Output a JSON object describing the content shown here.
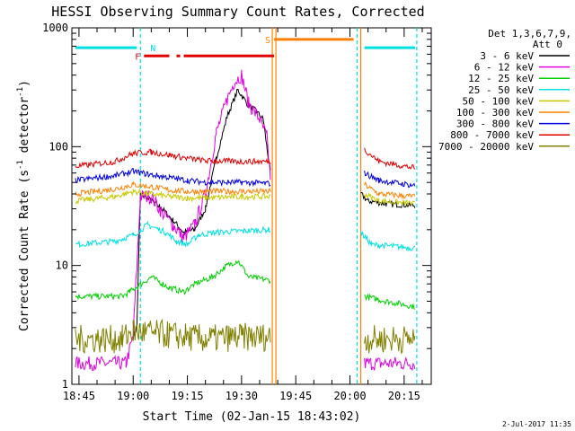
{
  "chart_data": {
    "type": "line",
    "title": "HESSI Observing Summary Count Rates, Corrected",
    "xlabel": "Start Time (02-Jan-15 18:43:02)",
    "ylabel": "Corrected Count Rate (s",
    "ylabel_sup1": "-1",
    "ylabel_mid": " detector",
    "ylabel_sup2": "-1",
    "ylabel_end": ")",
    "footer": "2-Jul-2017 11:35",
    "y_scale": "log",
    "ylim": [
      1,
      1000
    ],
    "xlim": [
      "18:43:02",
      "20:22:30"
    ],
    "x_ticks": [
      "18:45",
      "19:00",
      "19:15",
      "19:30",
      "19:45",
      "20:00",
      "20:15"
    ],
    "y_ticks": [
      "1",
      "10",
      "100",
      "1000"
    ],
    "legend": {
      "header1": "Det 1,3,6,7,9,",
      "header2": "Att 0",
      "placement": "right"
    },
    "series": [
      {
        "name": "3 - 6 keV",
        "color": "#000000",
        "points": [
          [
            "19:00",
            2.5
          ],
          [
            "19:01",
            3
          ],
          [
            "19:02",
            40
          ],
          [
            "19:05",
            35
          ],
          [
            "19:08",
            30
          ],
          [
            "19:11",
            24
          ],
          [
            "19:14",
            19
          ],
          [
            "19:17",
            20
          ],
          [
            "19:20",
            30
          ],
          [
            "19:23",
            80
          ],
          [
            "19:26",
            180
          ],
          [
            "19:29",
            300
          ],
          [
            "19:32",
            220
          ],
          [
            "19:34",
            200
          ],
          [
            "19:36",
            170
          ],
          [
            "19:37",
            100
          ],
          [
            "19:38",
            60
          ],
          [
            "20:03",
            40
          ],
          [
            "20:05",
            35
          ],
          [
            "20:10",
            33
          ],
          [
            "20:18",
            32
          ]
        ]
      },
      {
        "name": "6 - 12 keV",
        "color": "#e000e0",
        "points": [
          [
            "18:44",
            1.5
          ],
          [
            "18:58",
            1.5
          ],
          [
            "19:00",
            2.5
          ],
          [
            "19:02",
            38
          ],
          [
            "19:05",
            38
          ],
          [
            "19:08",
            28
          ],
          [
            "19:11",
            22
          ],
          [
            "19:14",
            17
          ],
          [
            "19:17",
            22
          ],
          [
            "19:20",
            40
          ],
          [
            "19:23",
            130
          ],
          [
            "19:26",
            250
          ],
          [
            "19:28",
            350
          ],
          [
            "19:30",
            400
          ],
          [
            "19:32",
            230
          ],
          [
            "19:35",
            170
          ],
          [
            "19:37",
            120
          ],
          [
            "19:38",
            55
          ],
          [
            "20:04",
            1.5
          ],
          [
            "20:18",
            1.5
          ]
        ]
      },
      {
        "name": "12 - 25 keV",
        "color": "#00d000",
        "points": [
          [
            "18:44",
            5.5
          ],
          [
            "18:57",
            5.5
          ],
          [
            "18:59",
            6
          ],
          [
            "19:05",
            8
          ],
          [
            "19:10",
            6.5
          ],
          [
            "19:14",
            6
          ],
          [
            "19:17",
            7
          ],
          [
            "19:22",
            8
          ],
          [
            "19:26",
            10
          ],
          [
            "19:29",
            11
          ],
          [
            "19:32",
            8
          ],
          [
            "19:38",
            7.5
          ],
          [
            "20:04",
            5.5
          ],
          [
            "20:10",
            5
          ],
          [
            "20:18",
            4.5
          ]
        ]
      },
      {
        "name": "25 - 50 keV",
        "color": "#00e0e0",
        "points": [
          [
            "18:44",
            15
          ],
          [
            "18:55",
            16
          ],
          [
            "19:00",
            18
          ],
          [
            "19:04",
            22
          ],
          [
            "19:09",
            19
          ],
          [
            "19:12",
            16
          ],
          [
            "19:15",
            15
          ],
          [
            "19:18",
            18
          ],
          [
            "19:23",
            19
          ],
          [
            "19:30",
            19.5
          ],
          [
            "19:38",
            20
          ],
          [
            "20:03",
            19
          ],
          [
            "20:06",
            15
          ],
          [
            "20:12",
            14.5
          ],
          [
            "20:18",
            14
          ]
        ]
      },
      {
        "name": "50 - 100 keV",
        "color": "#c8c800",
        "points": [
          [
            "18:44",
            35
          ],
          [
            "18:55",
            38
          ],
          [
            "19:00",
            42
          ],
          [
            "19:05",
            40
          ],
          [
            "19:10",
            38
          ],
          [
            "19:15",
            37
          ],
          [
            "19:20",
            37
          ],
          [
            "19:30",
            38
          ],
          [
            "19:38",
            38
          ],
          [
            "20:04",
            40
          ],
          [
            "20:08",
            35
          ],
          [
            "20:18",
            33
          ]
        ]
      },
      {
        "name": "100 - 300 keV",
        "color": "#ff8000",
        "points": [
          [
            "18:44",
            40
          ],
          [
            "18:55",
            44
          ],
          [
            "19:00",
            48
          ],
          [
            "19:05",
            46
          ],
          [
            "19:10",
            43
          ],
          [
            "19:15",
            42
          ],
          [
            "19:20",
            42
          ],
          [
            "19:30",
            42
          ],
          [
            "19:38",
            42
          ],
          [
            "20:04",
            48
          ],
          [
            "20:08",
            40
          ],
          [
            "20:18",
            38
          ]
        ]
      },
      {
        "name": "300 - 800 keV",
        "color": "#0000e0",
        "points": [
          [
            "18:44",
            52
          ],
          [
            "18:55",
            57
          ],
          [
            "19:00",
            62
          ],
          [
            "19:05",
            58
          ],
          [
            "19:10",
            55
          ],
          [
            "19:15",
            52
          ],
          [
            "19:20",
            50
          ],
          [
            "19:30",
            50
          ],
          [
            "19:38",
            49
          ],
          [
            "20:04",
            60
          ],
          [
            "20:08",
            52
          ],
          [
            "20:18",
            47
          ]
        ]
      },
      {
        "name": "800 - 7000 keV",
        "color": "#e00000",
        "points": [
          [
            "18:44",
            68
          ],
          [
            "18:55",
            75
          ],
          [
            "19:00",
            88
          ],
          [
            "19:05",
            90
          ],
          [
            "19:10",
            85
          ],
          [
            "19:15",
            80
          ],
          [
            "19:20",
            76
          ],
          [
            "19:30",
            75
          ],
          [
            "19:38",
            75
          ],
          [
            "20:04",
            95
          ],
          [
            "20:08",
            75
          ],
          [
            "20:18",
            66
          ]
        ]
      },
      {
        "name": "7000 - 20000 keV",
        "color": "#808000",
        "points": [
          [
            "18:44",
            2.4
          ],
          [
            "18:57",
            2.4
          ],
          [
            "19:00",
            2.8
          ],
          [
            "19:10",
            2.6
          ],
          [
            "19:20",
            2.4
          ],
          [
            "19:30",
            2.5
          ],
          [
            "19:38",
            2.5
          ],
          [
            "20:04",
            2.4
          ],
          [
            "20:18",
            2.4
          ]
        ]
      }
    ],
    "flags": [
      {
        "label": "F",
        "color": "#e00000",
        "level": 580,
        "segments": [
          [
            "19:03",
            "19:10"
          ],
          [
            "19:12",
            "19:13"
          ],
          [
            "19:14",
            "19:39"
          ]
        ]
      },
      {
        "label": "S",
        "color": "#ff8000",
        "level": 800,
        "segments": [
          [
            "19:39",
            "20:01"
          ]
        ]
      },
      {
        "label": "N",
        "color": "#00e0e0",
        "level": 680,
        "segments": [
          [
            "18:44",
            "19:01"
          ],
          [
            "20:04",
            "20:18"
          ]
        ]
      }
    ],
    "vlines": [
      {
        "time": "19:02",
        "color": "#00e0e0",
        "style": "dashed"
      },
      {
        "time": "19:38.5",
        "color": "#ff8000",
        "style": "solid"
      },
      {
        "time": "19:39.5",
        "color": "#ff8000",
        "style": "solid"
      },
      {
        "time": "20:02",
        "color": "#00e0e0",
        "style": "dashed"
      },
      {
        "time": "20:03",
        "color": "#ff8000",
        "style": "solid"
      },
      {
        "time": "20:18.5",
        "color": "#00e0e0",
        "style": "dashed"
      }
    ]
  }
}
